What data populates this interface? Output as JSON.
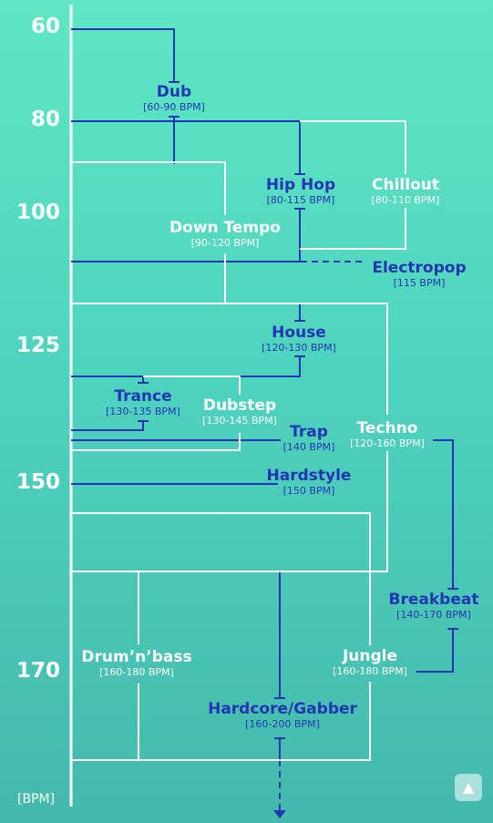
{
  "axis": {
    "ticks": [
      "60",
      "80",
      "100",
      "125",
      "150",
      "170"
    ],
    "unit": "[BPM]"
  },
  "genres": {
    "dub": {
      "name": "Dub",
      "range": "[60-90 BPM]"
    },
    "hiphop": {
      "name": "Hip Hop",
      "range": "[80-115 BPM]"
    },
    "chillout": {
      "name": "Chillout",
      "range": "[80-110 BPM]"
    },
    "downtempo": {
      "name": "Down Tempo",
      "range": "[90-120 BPM]"
    },
    "electropop": {
      "name": "Electropop",
      "range": "[115 BPM]"
    },
    "house": {
      "name": "House",
      "range": "[120-130 BPM]"
    },
    "trance": {
      "name": "Trance",
      "range": "[130-135 BPM]"
    },
    "dubstep": {
      "name": "Dubstep",
      "range": "[130-145 BPM]"
    },
    "trap": {
      "name": "Trap",
      "range": "[140 BPM]"
    },
    "techno": {
      "name": "Techno",
      "range": "[120-160 BPM]"
    },
    "hardstyle": {
      "name": "Hardstyle",
      "range": "[150 BPM]"
    },
    "breakbeat": {
      "name": "Breakbeat",
      "range": "[140-170 BPM]"
    },
    "drumnbass": {
      "name": "Drum’n’bass",
      "range": "[160-180 BPM]"
    },
    "jungle": {
      "name": "Jungle",
      "range": "[160-180 BPM]"
    },
    "hardcore": {
      "name": "Hardcore/Gabber",
      "range": "[160-200 BPM]"
    }
  },
  "colors": {
    "background": "#55dcc0",
    "dark_line": "#2236b3",
    "light_line": "#ffffff"
  },
  "controls": {
    "scroll_top_icon": "▲"
  }
}
